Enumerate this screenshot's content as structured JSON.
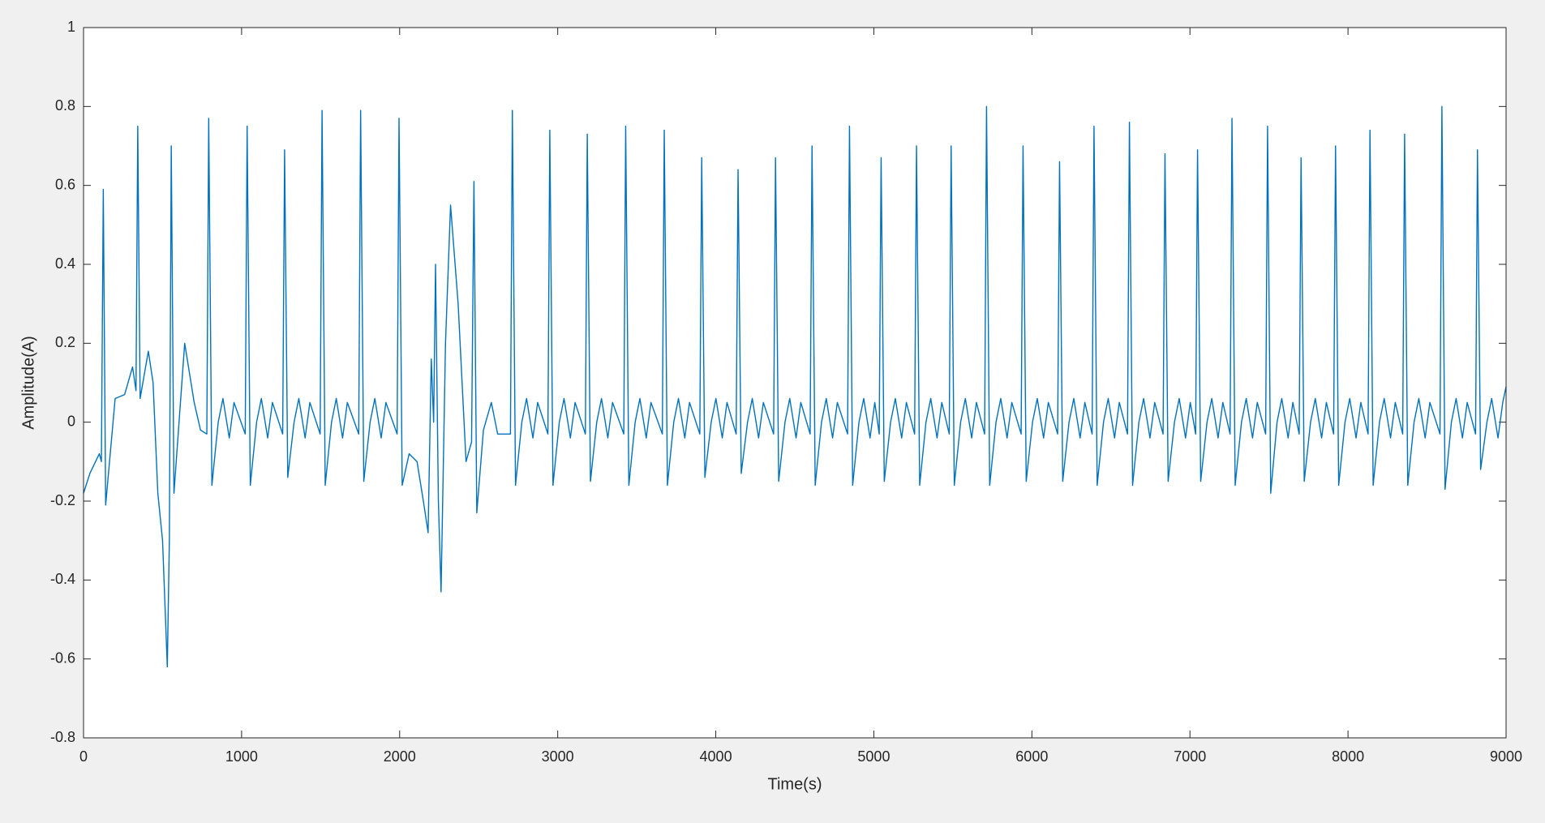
{
  "chart_data": {
    "type": "line",
    "x_label": "Time(s)",
    "y_label": "Amplitude(A)",
    "color": "#0072bd",
    "xlim": [
      0,
      9000
    ],
    "ylim": [
      -0.8,
      1
    ],
    "xticks": [
      0,
      1000,
      2000,
      3000,
      4000,
      5000,
      6000,
      7000,
      8000,
      9000
    ],
    "yticks": [
      -0.8,
      -0.6,
      -0.4,
      -0.2,
      0,
      0.2,
      0.4,
      0.6,
      0.8,
      1
    ],
    "grid": false,
    "x": [
      0,
      40,
      100,
      113,
      125,
      140,
      200,
      260,
      310,
      332,
      343,
      358,
      410,
      440,
      470,
      500,
      530,
      543,
      555,
      572,
      640,
      700,
      740,
      780,
      792,
      812,
      852,
      882,
      922,
      952,
      1023,
      1035,
      1055,
      1095,
      1125,
      1165,
      1195,
      1260,
      1272,
      1292,
      1332,
      1362,
      1402,
      1432,
      1497,
      1509,
      1529,
      1569,
      1599,
      1639,
      1669,
      1741,
      1753,
      1773,
      1813,
      1843,
      1883,
      1913,
      1984,
      1996,
      2016,
      2060,
      2110,
      2150,
      2180,
      2200,
      2215,
      2227,
      2245,
      2262,
      2290,
      2322,
      2370,
      2420,
      2455,
      2470,
      2488,
      2530,
      2580,
      2620,
      2701,
      2713,
      2733,
      2773,
      2803,
      2843,
      2873,
      2938,
      2950,
      2970,
      3010,
      3040,
      3080,
      3110,
      3175,
      3187,
      3207,
      3247,
      3277,
      3317,
      3347,
      3418,
      3430,
      3450,
      3490,
      3520,
      3560,
      3590,
      3662,
      3674,
      3694,
      3734,
      3764,
      3804,
      3834,
      3899,
      3911,
      3931,
      3971,
      4001,
      4041,
      4071,
      4129,
      4141,
      4161,
      4201,
      4231,
      4271,
      4301,
      4366,
      4378,
      4398,
      4438,
      4468,
      4508,
      4538,
      4597,
      4609,
      4629,
      4669,
      4699,
      4739,
      4769,
      4834,
      4846,
      4866,
      4906,
      4936,
      4976,
      5006,
      5034,
      5046,
      5066,
      5106,
      5136,
      5176,
      5206,
      5258,
      5270,
      5290,
      5330,
      5360,
      5400,
      5430,
      5477,
      5489,
      5509,
      5549,
      5579,
      5619,
      5649,
      5701,
      5713,
      5733,
      5773,
      5803,
      5843,
      5873,
      5932,
      5944,
      5964,
      6004,
      6034,
      6074,
      6104,
      6163,
      6175,
      6195,
      6235,
      6265,
      6305,
      6335,
      6381,
      6393,
      6413,
      6453,
      6483,
      6523,
      6553,
      6605,
      6617,
      6637,
      6677,
      6707,
      6747,
      6777,
      6830,
      6842,
      6862,
      6902,
      6932,
      6972,
      7002,
      7036,
      7048,
      7068,
      7108,
      7138,
      7178,
      7208,
      7254,
      7266,
      7286,
      7326,
      7356,
      7396,
      7426,
      7479,
      7491,
      7511,
      7551,
      7581,
      7621,
      7651,
      7691,
      7703,
      7723,
      7763,
      7793,
      7833,
      7863,
      7909,
      7921,
      7941,
      7981,
      8011,
      8051,
      8081,
      8127,
      8139,
      8159,
      8199,
      8229,
      8269,
      8299,
      8346,
      8358,
      8378,
      8418,
      8448,
      8488,
      8518,
      8582,
      8594,
      8614,
      8654,
      8684,
      8724,
      8754,
      8807,
      8819,
      8839,
      8879,
      8909,
      8949,
      8979,
      9000
    ],
    "values": [
      -0.18,
      -0.13,
      -0.08,
      -0.1,
      0.59,
      -0.21,
      0.06,
      0.07,
      0.14,
      0.08,
      0.75,
      0.06,
      0.18,
      0.1,
      -0.18,
      -0.3,
      -0.62,
      -0.3,
      0.7,
      -0.18,
      0.2,
      0.05,
      -0.02,
      -0.03,
      0.77,
      -0.16,
      0,
      0.06,
      -0.04,
      0.05,
      -0.03,
      0.75,
      -0.16,
      0,
      0.06,
      -0.04,
      0.05,
      -0.03,
      0.69,
      -0.14,
      0,
      0.06,
      -0.04,
      0.05,
      -0.03,
      0.79,
      -0.16,
      0,
      0.06,
      -0.04,
      0.05,
      -0.03,
      0.79,
      -0.15,
      0,
      0.06,
      -0.04,
      0.05,
      -0.03,
      0.77,
      -0.16,
      -0.08,
      -0.1,
      -0.2,
      -0.28,
      0.16,
      0,
      0.4,
      -0.2,
      -0.43,
      0.2,
      0.55,
      0.3,
      -0.1,
      -0.05,
      0.61,
      -0.23,
      -0.02,
      0.05,
      -0.03,
      -0.03,
      0.79,
      -0.16,
      0,
      0.06,
      -0.04,
      0.05,
      -0.03,
      0.74,
      -0.16,
      0,
      0.06,
      -0.04,
      0.05,
      -0.03,
      0.73,
      -0.15,
      0,
      0.06,
      -0.04,
      0.05,
      -0.03,
      0.75,
      -0.16,
      0,
      0.06,
      -0.04,
      0.05,
      -0.03,
      0.74,
      -0.16,
      0,
      0.06,
      -0.04,
      0.05,
      -0.03,
      0.67,
      -0.14,
      0,
      0.06,
      -0.04,
      0.05,
      -0.03,
      0.64,
      -0.13,
      0,
      0.06,
      -0.04,
      0.05,
      -0.03,
      0.67,
      -0.15,
      0,
      0.06,
      -0.04,
      0.05,
      -0.03,
      0.7,
      -0.16,
      0,
      0.06,
      -0.04,
      0.05,
      -0.03,
      0.75,
      -0.16,
      0,
      0.06,
      -0.04,
      0.05,
      -0.03,
      0.67,
      -0.15,
      0,
      0.06,
      -0.04,
      0.05,
      -0.03,
      0.7,
      -0.16,
      0,
      0.06,
      -0.04,
      0.05,
      -0.03,
      0.7,
      -0.16,
      0,
      0.06,
      -0.04,
      0.05,
      -0.03,
      0.8,
      -0.16,
      0,
      0.06,
      -0.04,
      0.05,
      -0.03,
      0.7,
      -0.15,
      0,
      0.06,
      -0.04,
      0.05,
      -0.03,
      0.66,
      -0.15,
      0,
      0.06,
      -0.04,
      0.05,
      -0.03,
      0.75,
      -0.16,
      0,
      0.06,
      -0.04,
      0.05,
      -0.03,
      0.76,
      -0.16,
      0,
      0.06,
      -0.04,
      0.05,
      -0.03,
      0.68,
      -0.15,
      0,
      0.06,
      -0.04,
      0.05,
      -0.03,
      0.69,
      -0.15,
      0,
      0.06,
      -0.04,
      0.05,
      -0.03,
      0.77,
      -0.16,
      0,
      0.06,
      -0.04,
      0.05,
      -0.03,
      0.75,
      -0.18,
      0,
      0.06,
      -0.04,
      0.05,
      -0.03,
      0.67,
      -0.15,
      0,
      0.06,
      -0.04,
      0.05,
      -0.03,
      0.7,
      -0.16,
      0,
      0.06,
      -0.04,
      0.05,
      -0.03,
      0.74,
      -0.16,
      0,
      0.06,
      -0.04,
      0.05,
      -0.03,
      0.73,
      -0.16,
      0,
      0.06,
      -0.04,
      0.05,
      -0.03,
      0.8,
      -0.17,
      0,
      0.06,
      -0.04,
      0.05,
      -0.03,
      0.69,
      -0.12,
      0,
      0.06,
      -0.04,
      0.05,
      0.09
    ]
  }
}
